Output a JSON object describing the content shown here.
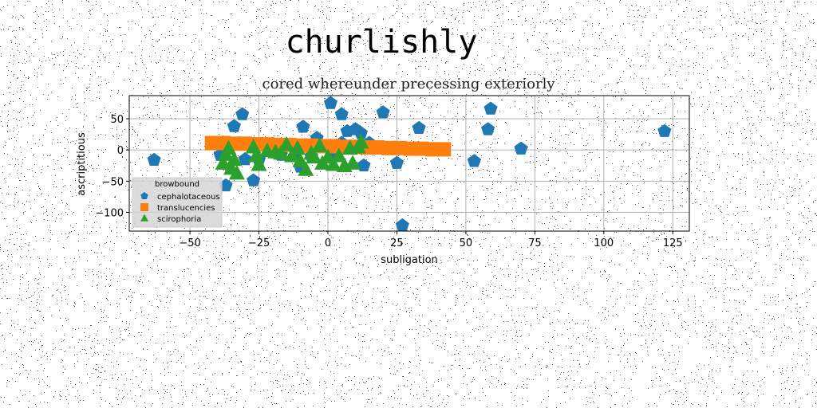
{
  "chart_data": {
    "type": "scatter",
    "suptitle": "churlishly",
    "title": "cored whereunder precessing exteriorly",
    "xlabel": "subligation",
    "ylabel": "ascriptitious",
    "xlim": [
      -72,
      131
    ],
    "ylim": [
      -130,
      87
    ],
    "xticks": [
      -50,
      -25,
      0,
      25,
      50,
      75,
      100,
      125
    ],
    "yticks": [
      -100,
      -50,
      0,
      50
    ],
    "xtick_labels": [
      "−50",
      "−25",
      "0",
      "25",
      "50",
      "75",
      "100",
      "125"
    ],
    "ytick_labels": [
      "−100",
      "−50",
      "0",
      "50"
    ],
    "grid": true,
    "legend": {
      "title": "browbound",
      "placement": "lower-left"
    },
    "series": [
      {
        "name": "cephalotaceous",
        "marker": "pentagon",
        "color": "#1f77b4",
        "points": [
          [
            -63,
            -16
          ],
          [
            -39,
            -8
          ],
          [
            -37,
            -57
          ],
          [
            -34,
            38
          ],
          [
            -31,
            57
          ],
          [
            -30,
            -15
          ],
          [
            -27,
            -49
          ],
          [
            -25,
            -16
          ],
          [
            -17,
            -8
          ],
          [
            -12,
            -10
          ],
          [
            -10,
            -27
          ],
          [
            -9,
            37
          ],
          [
            -6,
            -10
          ],
          [
            -4,
            19
          ],
          [
            1,
            75
          ],
          [
            3,
            -10
          ],
          [
            5,
            57
          ],
          [
            5,
            11
          ],
          [
            7,
            30
          ],
          [
            10,
            33
          ],
          [
            12,
            27
          ],
          [
            13,
            -25
          ],
          [
            15,
            11
          ],
          [
            20,
            60
          ],
          [
            25,
            -21
          ],
          [
            27,
            -121
          ],
          [
            33,
            35
          ],
          [
            53,
            -18
          ],
          [
            58,
            33
          ],
          [
            59,
            66
          ],
          [
            70,
            2
          ],
          [
            122,
            30
          ]
        ]
      },
      {
        "name": "translucencies",
        "marker": "square",
        "color": "#ff7f0e",
        "points": [
          [
            -42,
            11
          ],
          [
            -38,
            11
          ],
          [
            -34,
            10
          ],
          [
            -30,
            10
          ],
          [
            -26,
            9
          ],
          [
            -22,
            9
          ],
          [
            -18,
            8
          ],
          [
            -14,
            8
          ],
          [
            -10,
            7
          ],
          [
            -6,
            7
          ],
          [
            -2,
            6
          ],
          [
            2,
            6
          ],
          [
            6,
            5
          ],
          [
            10,
            5
          ],
          [
            14,
            4
          ],
          [
            18,
            4
          ],
          [
            22,
            3
          ],
          [
            26,
            3
          ],
          [
            30,
            2
          ],
          [
            34,
            2
          ],
          [
            38,
            1
          ],
          [
            42,
            1
          ]
        ]
      },
      {
        "name": "scirophoria",
        "marker": "triangle",
        "color": "#2ca02c",
        "points": [
          [
            -38,
            -22
          ],
          [
            -37,
            -8
          ],
          [
            -36,
            2
          ],
          [
            -35,
            -30
          ],
          [
            -34,
            -16
          ],
          [
            -33,
            -38
          ],
          [
            -27,
            4
          ],
          [
            -26,
            -10
          ],
          [
            -25,
            -24
          ],
          [
            -22,
            -2
          ],
          [
            -19,
            -4
          ],
          [
            -17,
            -6
          ],
          [
            -15,
            8
          ],
          [
            -13,
            -10
          ],
          [
            -11,
            2
          ],
          [
            -10,
            -18
          ],
          [
            -8,
            -32
          ],
          [
            -6,
            -6
          ],
          [
            -5,
            -12
          ],
          [
            -3,
            6
          ],
          [
            -2,
            -22
          ],
          [
            0,
            -12
          ],
          [
            2,
            -24
          ],
          [
            4,
            -10
          ],
          [
            6,
            -26
          ],
          [
            8,
            2
          ],
          [
            9,
            -22
          ],
          [
            11,
            4
          ],
          [
            12,
            12
          ]
        ]
      }
    ]
  }
}
